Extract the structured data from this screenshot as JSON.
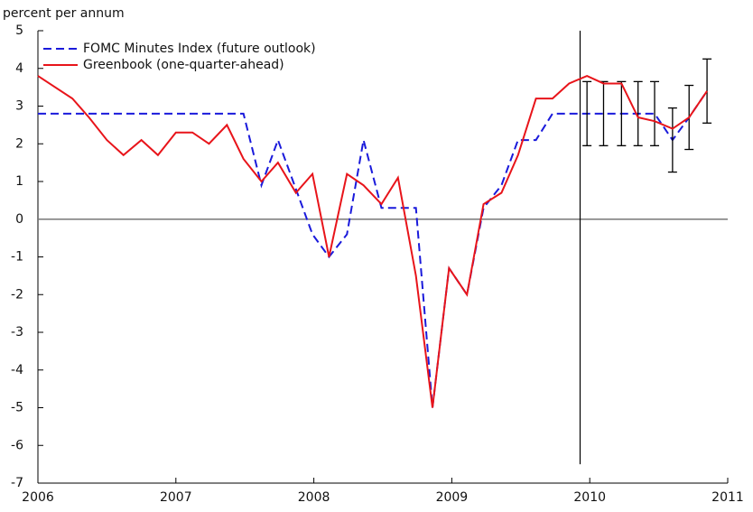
{
  "chart_data": {
    "type": "line",
    "y_label": "percent per annum",
    "x": [
      2006.0,
      2006.25,
      2006.37,
      2006.5,
      2006.62,
      2006.75,
      2006.87,
      2007.0,
      2007.12,
      2007.24,
      2007.37,
      2007.49,
      2007.62,
      2007.74,
      2007.87,
      2007.99,
      2008.11,
      2008.24,
      2008.36,
      2008.49,
      2008.61,
      2008.74,
      2008.86,
      2008.98,
      2009.11,
      2009.23,
      2009.36,
      2009.48,
      2009.61,
      2009.73,
      2009.85,
      2009.98,
      2010.1,
      2010.23,
      2010.35,
      2010.47,
      2010.6,
      2010.72,
      2010.85
    ],
    "series": [
      {
        "name": "FOMC Minutes Index (future outlook)",
        "color": "#1a1adb",
        "dashed": true,
        "values": [
          2.8,
          2.8,
          2.8,
          2.8,
          2.8,
          2.8,
          2.8,
          2.8,
          2.8,
          2.8,
          2.8,
          2.8,
          0.9,
          2.1,
          0.8,
          -0.4,
          -1.0,
          -0.4,
          2.1,
          0.3,
          0.3,
          0.3,
          -5.0,
          -1.3,
          -2.0,
          0.3,
          0.9,
          2.1,
          2.1,
          2.8,
          2.8,
          2.8,
          2.8,
          2.8,
          2.8,
          2.8,
          2.1,
          2.7,
          3.4
        ],
        "errors": [
          null,
          null,
          null,
          null,
          null,
          null,
          null,
          null,
          null,
          null,
          null,
          null,
          null,
          null,
          null,
          null,
          null,
          null,
          null,
          null,
          null,
          null,
          null,
          null,
          null,
          null,
          null,
          null,
          null,
          null,
          null,
          0.85,
          0.85,
          0.85,
          0.85,
          0.85,
          0.85,
          0.85,
          0.85
        ]
      },
      {
        "name": "Greenbook (one-quarter-ahead)",
        "color": "#e8141a",
        "dashed": false,
        "values": [
          3.8,
          3.2,
          2.7,
          2.1,
          1.7,
          2.1,
          1.7,
          2.3,
          2.3,
          2.0,
          2.5,
          1.6,
          1.0,
          1.5,
          0.7,
          1.2,
          -1.0,
          1.2,
          0.9,
          0.4,
          1.1,
          -1.5,
          -5.0,
          -1.3,
          -2.0,
          0.4,
          0.7,
          1.7,
          3.2,
          3.2,
          3.6,
          3.8,
          3.6,
          3.6,
          2.7,
          2.6,
          2.4,
          2.7,
          3.4
        ]
      }
    ],
    "vline_x": 2009.93,
    "vline_ylim": [
      -6.5,
      5
    ],
    "xlim": [
      2006,
      2011
    ],
    "xticks": [
      2006,
      2007,
      2008,
      2009,
      2010,
      2011
    ],
    "ylim": [
      -7,
      5
    ],
    "yticks": [
      -7,
      -6,
      -5,
      -4,
      -3,
      -2,
      -1,
      0,
      1,
      2,
      3,
      4,
      5
    ],
    "legend": "upper left"
  }
}
